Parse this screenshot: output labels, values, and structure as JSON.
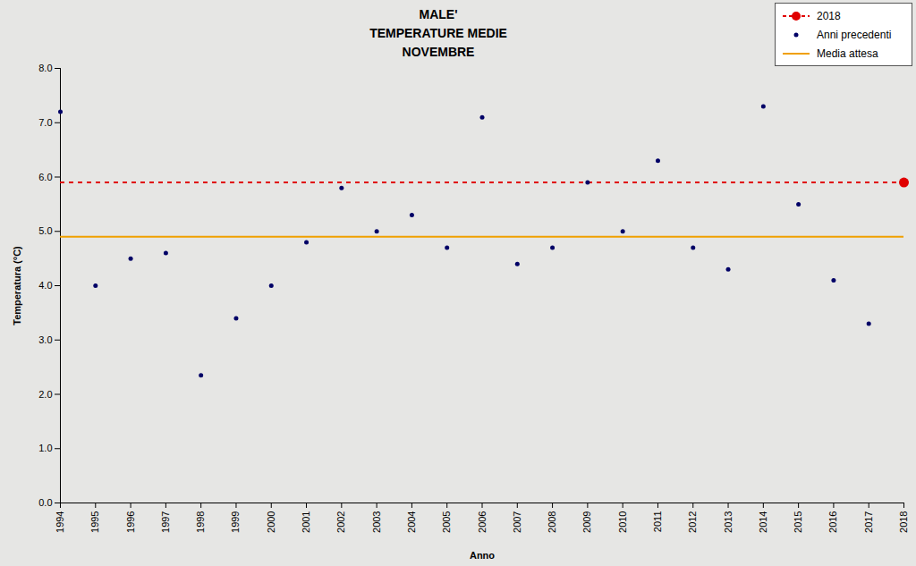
{
  "chart_data": {
    "type": "scatter",
    "title": "MALE'\nTEMPERATURE MEDIE\nNOVEMBRE",
    "x_label": "Anno",
    "y_label": "Temperatura (°C)",
    "xlim": [
      1994,
      2018
    ],
    "xticks": [
      1994,
      1995,
      1996,
      1997,
      1998,
      1999,
      2000,
      2001,
      2002,
      2003,
      2004,
      2005,
      2006,
      2007,
      2008,
      2009,
      2010,
      2011,
      2012,
      2013,
      2014,
      2015,
      2016,
      2017,
      2018
    ],
    "ylim": [
      0,
      8
    ],
    "yticks": [
      {
        "value": 0,
        "label": "0.0"
      },
      {
        "value": 1,
        "label": "1.0"
      },
      {
        "value": 2,
        "label": "2.0"
      },
      {
        "value": 3,
        "label": "3.0"
      },
      {
        "value": 4,
        "label": "4.0"
      },
      {
        "value": 5,
        "label": "5.0"
      },
      {
        "value": 6,
        "label": "6.0"
      },
      {
        "value": 7,
        "label": "7.0"
      },
      {
        "value": 8,
        "label": "8.0"
      }
    ],
    "grid": false,
    "legend": "top-right",
    "series": [
      {
        "name": "2018",
        "type": "scatter",
        "color": "#e00000",
        "marker": "circle",
        "line_style": "dashed",
        "x": [
          2018
        ],
        "values": [
          5.9
        ]
      },
      {
        "name": "Anni precedenti",
        "type": "scatter",
        "color": "#000066",
        "marker": "circle",
        "x": [
          1994,
          1995,
          1996,
          1997,
          1998,
          1999,
          2000,
          2001,
          2002,
          2003,
          2004,
          2005,
          2006,
          2007,
          2008,
          2009,
          2010,
          2011,
          2012,
          2013,
          2014,
          2015,
          2016,
          2017
        ],
        "values": [
          7.2,
          4.0,
          4.5,
          4.6,
          2.35,
          3.4,
          4.0,
          4.8,
          5.8,
          5.0,
          5.3,
          4.7,
          7.1,
          4.4,
          4.7,
          5.9,
          5.0,
          6.3,
          4.7,
          4.3,
          7.3,
          5.5,
          4.1,
          3.3
        ]
      },
      {
        "name": "Media attesa",
        "type": "hline",
        "color": "#f0a000",
        "line_style": "solid",
        "values": [
          4.9
        ]
      }
    ]
  }
}
